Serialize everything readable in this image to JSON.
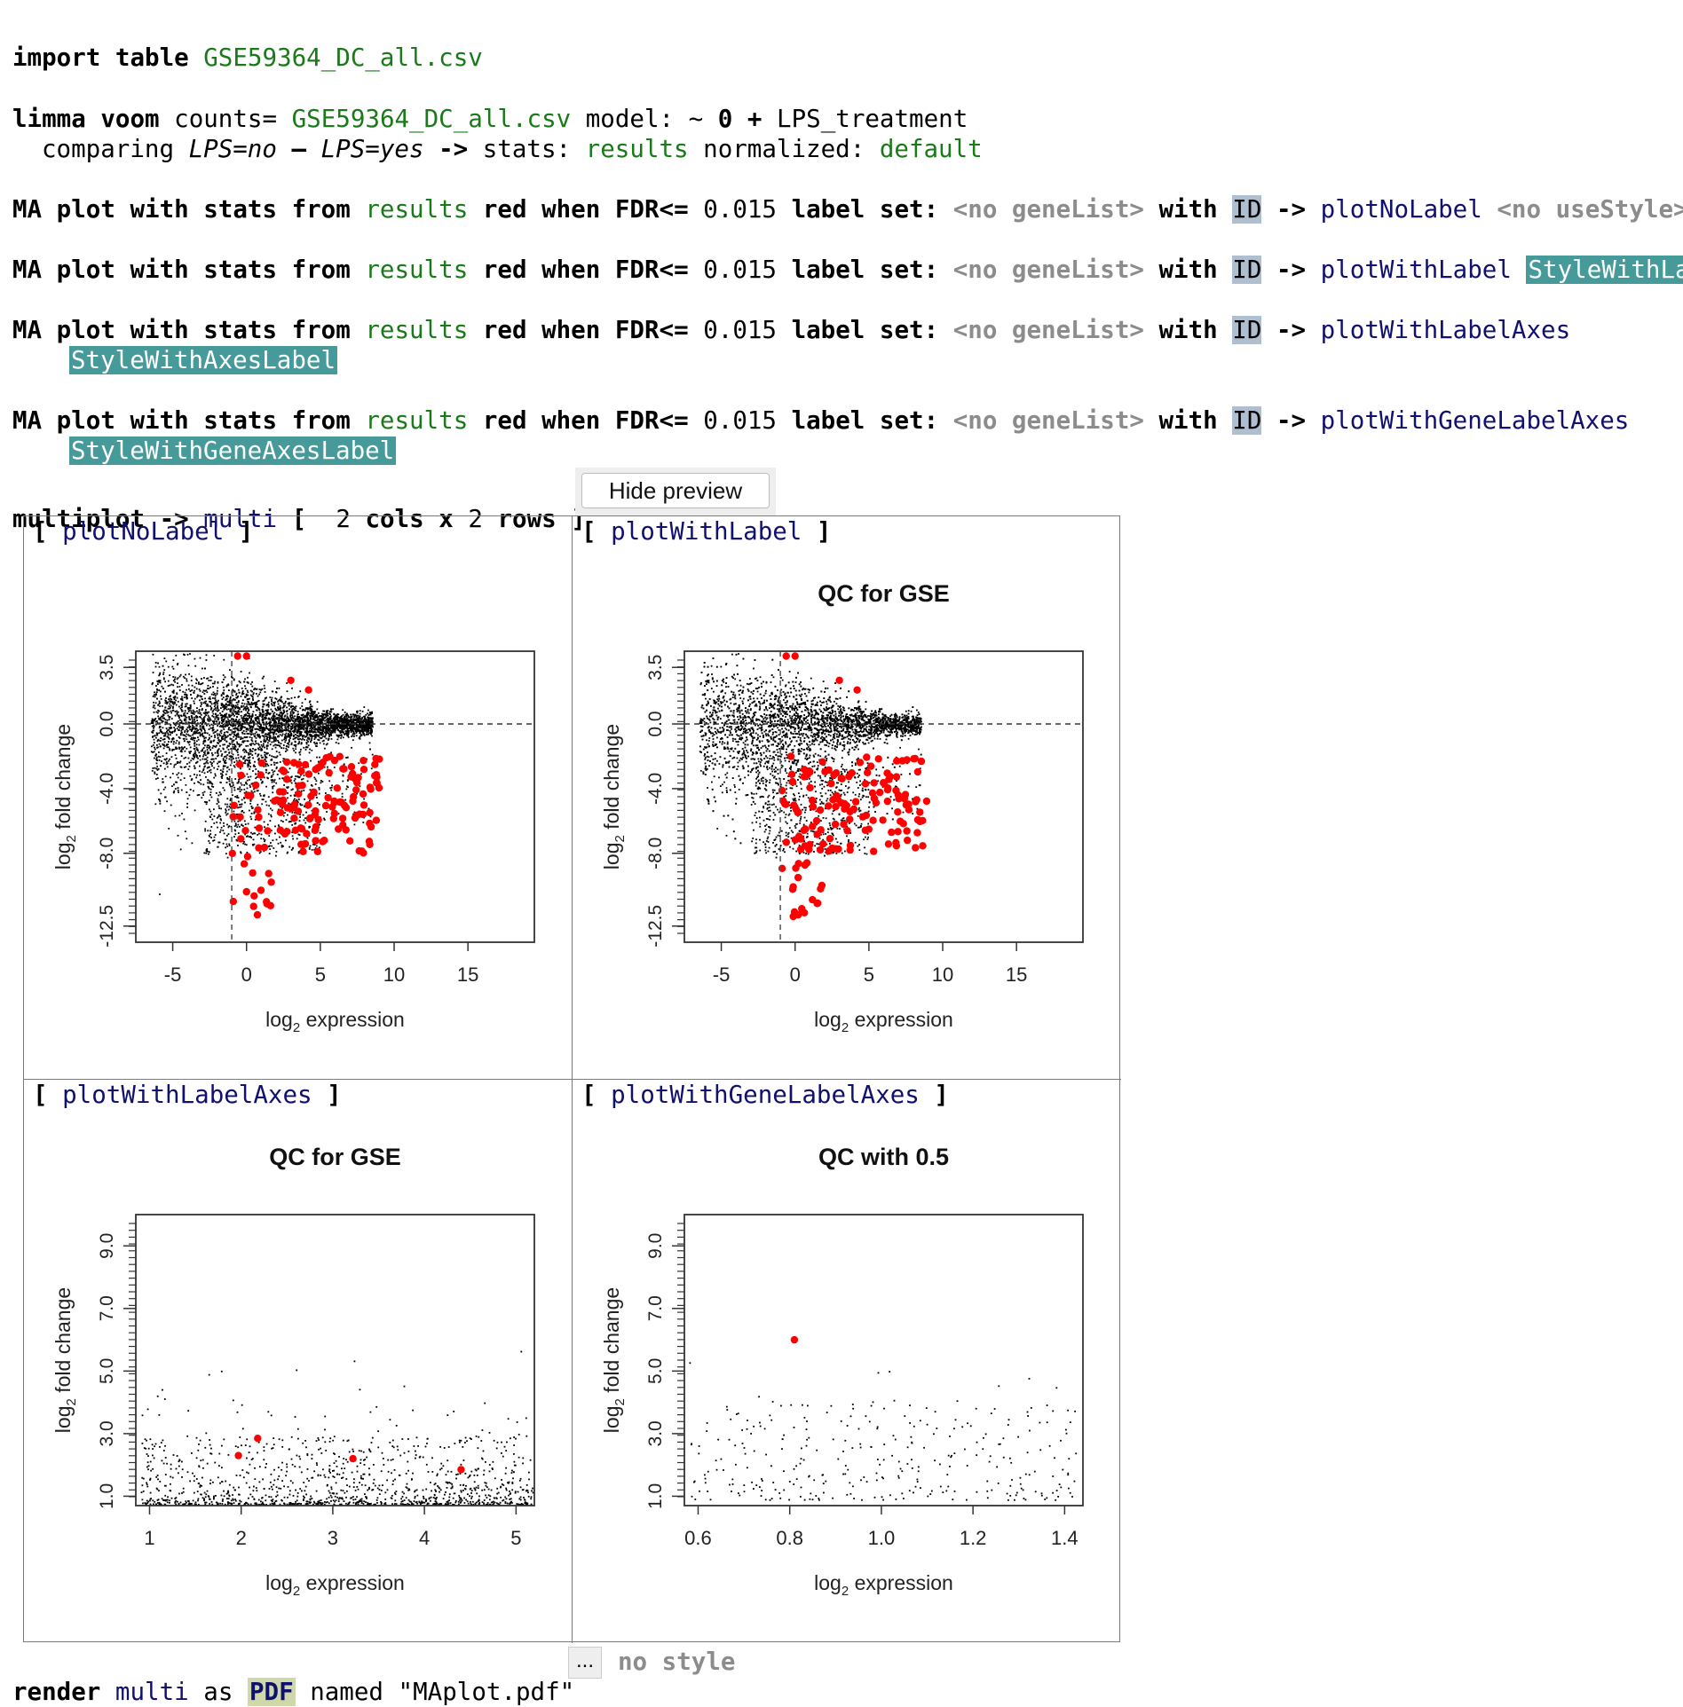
{
  "line1": {
    "kw": "import table",
    "file": "GSE59364_DC_all.csv"
  },
  "line2": {
    "kw": "limma voom",
    "counts_label": "counts=",
    "file": "GSE59364_DC_all.csv",
    "model_label": "model:",
    "tilde": "~",
    "zero": "0",
    "plus": "+",
    "factor": "LPS_treatment",
    "comparing": "comparing",
    "left": "LPS=no",
    "minus": "–",
    "right": "LPS=yes",
    "arrow": "->",
    "stats_label": "stats:",
    "stats": "results",
    "normalized_label": "normalized:",
    "normalized": "default"
  },
  "ma_common": {
    "ma": "MA plot with stats from",
    "stats": "results",
    "red": "red when FDR<=",
    "fdr": "0.015",
    "label_set": "label set:",
    "genelist": "<no geneList>",
    "with": "with",
    "id": "ID",
    "arrow": "->"
  },
  "ma_plots": [
    {
      "name": "plotNoLabel",
      "style": "<no useStyle>"
    },
    {
      "name": "plotWithLabel",
      "style": "StyleWithLabel"
    },
    {
      "name": "plotWithLabelAxes",
      "style": "StyleWithAxesLabel"
    },
    {
      "name": "plotWithGeneLabelAxes",
      "style": "StyleWithGeneAxesLabel"
    }
  ],
  "multiplot": {
    "kw": "multiplot",
    "arrow": "->",
    "name": "multi",
    "open": "[",
    "cols": "2",
    "cols_label": "cols",
    "x": "x",
    "rows": "2",
    "rows_label": "rows",
    "close": "]",
    "button": "Hide preview"
  },
  "cells": [
    {
      "label": "plotNoLabel",
      "title": "",
      "xlabel": "log",
      "xlabel_sub": "2",
      "xlabel_rest": " expression",
      "ylabel": "log",
      "ylabel_sub": "2",
      "ylabel_rest": " fold change"
    },
    {
      "label": "plotWithLabel",
      "title": "QC for GSE",
      "xlabel": "log",
      "xlabel_sub": "2",
      "xlabel_rest": " expression",
      "ylabel": "log",
      "ylabel_sub": "2",
      "ylabel_rest": " fold change"
    },
    {
      "label": "plotWithLabelAxes",
      "title": "QC for GSE",
      "xlabel": "log",
      "xlabel_sub": "2",
      "xlabel_rest": " expression",
      "ylabel": "log",
      "ylabel_sub": "2",
      "ylabel_rest": " fold change"
    },
    {
      "label": "plotWithGeneLabelAxes",
      "title": "QC with 0.5",
      "xlabel": "log",
      "xlabel_sub": "2",
      "xlabel_rest": " expression",
      "ylabel": "log",
      "ylabel_sub": "2",
      "ylabel_rest": " fold change"
    }
  ],
  "render": {
    "kw": "render",
    "name": "multi",
    "as": "as",
    "fmt": "PDF",
    "named": "named",
    "file": "\"MAplot.pdf\"",
    "dots": "...",
    "style": "no style"
  },
  "chart_data": [
    {
      "type": "scatter",
      "title": "",
      "xlabel": "log2 expression",
      "ylabel": "log2 fold change",
      "xlim": [
        -7.5,
        19.5
      ],
      "ylim": [
        -13.5,
        4.5
      ],
      "x_ticks": [
        -5,
        0,
        5,
        10,
        15
      ],
      "y_ticks": [
        "-12.5",
        "-8.0",
        "-4.0",
        "0.0",
        "3.5"
      ],
      "series": [
        {
          "color": "#000000"
        },
        {
          "color": "#ff0000"
        }
      ]
    },
    {
      "type": "scatter",
      "title": "QC for GSE",
      "xlabel": "log2 expression",
      "ylabel": "log2 fold change",
      "xlim": [
        -7.5,
        19.5
      ],
      "ylim": [
        -13.5,
        4.5
      ],
      "x_ticks": [
        -5,
        0,
        5,
        10,
        15
      ],
      "y_ticks": [
        "-12.5",
        "-8.0",
        "-4.0",
        "0.0",
        "3.5"
      ],
      "series": [
        {
          "color": "#000000"
        },
        {
          "color": "#ff0000"
        }
      ]
    },
    {
      "type": "scatter",
      "title": "QC for GSE",
      "xlabel": "log2 expression",
      "ylabel": "log2 fold change",
      "xlim": [
        0.85,
        5.2
      ],
      "ylim": [
        0.7,
        10.0
      ],
      "x_ticks": [
        1,
        2,
        3,
        4,
        5
      ],
      "y_ticks": [
        "1.0",
        "3.0",
        "5.0",
        "7.0",
        "9.0"
      ],
      "red_points": [
        [
          1.97,
          2.3
        ],
        [
          2.18,
          2.85
        ],
        [
          3.22,
          2.2
        ],
        [
          4.4,
          1.85
        ]
      ],
      "series": [
        {
          "color": "#000000"
        },
        {
          "color": "#ff0000"
        }
      ]
    },
    {
      "type": "scatter",
      "title": "QC with 0.5",
      "xlabel": "log2 expression",
      "ylabel": "log2 fold change",
      "xlim": [
        0.57,
        1.44
      ],
      "ylim": [
        0.7,
        10.0
      ],
      "x_ticks": [
        "0.6",
        "0.8",
        "1.0",
        "1.2",
        "1.4"
      ],
      "y_ticks": [
        "1.0",
        "3.0",
        "5.0",
        "7.0",
        "9.0"
      ],
      "red_points": [
        [
          0.81,
          6.0
        ]
      ],
      "series": [
        {
          "color": "#000000"
        },
        {
          "color": "#ff0000"
        }
      ]
    }
  ]
}
